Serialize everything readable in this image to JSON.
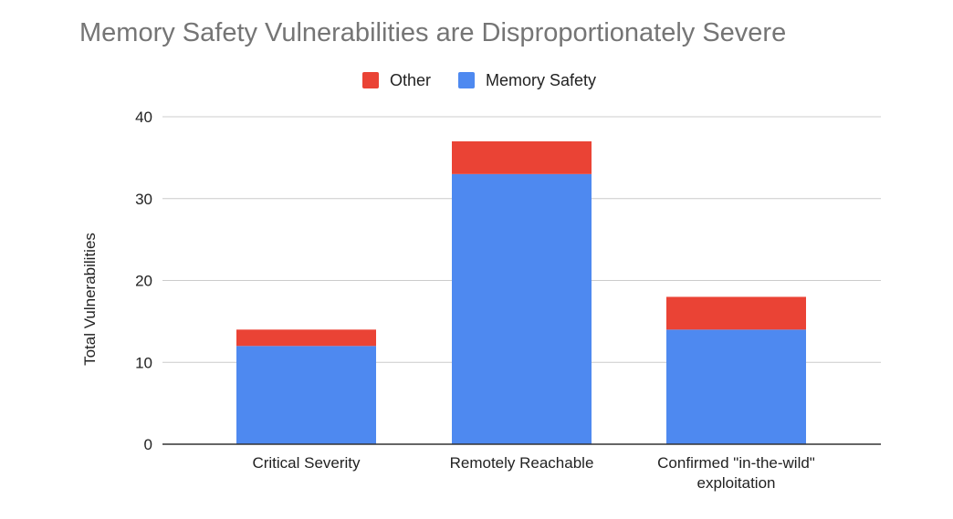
{
  "chart_data": {
    "type": "bar",
    "stacked": true,
    "title": "Memory Safety Vulnerabilities are Disproportionately Severe",
    "xlabel": "",
    "ylabel": "Total Vulnerabilities",
    "ylim": [
      0,
      40
    ],
    "yticks": [
      0,
      10,
      20,
      30,
      40
    ],
    "grid": true,
    "legend_position": "top-center",
    "categories": [
      [
        "Critical Severity"
      ],
      [
        "Remotely Reachable"
      ],
      [
        "Confirmed \"in-the-wild\"",
        "exploitation"
      ]
    ],
    "series": [
      {
        "name": "Memory Safety",
        "color": "#4e89f0",
        "values": [
          12,
          33,
          14
        ]
      },
      {
        "name": "Other",
        "color": "#ea4335",
        "values": [
          2,
          4,
          4
        ]
      }
    ],
    "legend_order": [
      "Other",
      "Memory Safety"
    ]
  }
}
